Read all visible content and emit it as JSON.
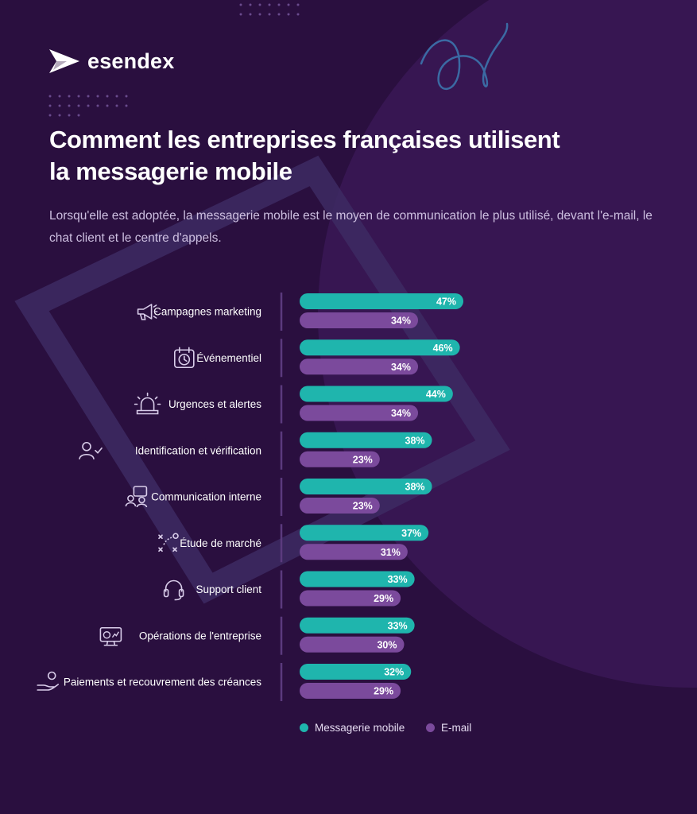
{
  "brand": {
    "name": "esendex"
  },
  "header": {
    "title_line1": "Comment les entreprises françaises utilisent",
    "title_line2": "la messagerie mobile",
    "subtitle": "Lorsqu'elle est adoptée, la messagerie mobile est le moyen de communication le plus utilisé, devant l'e-mail, le chat client et le centre d'appels."
  },
  "colors": {
    "background": "#2a0f3f",
    "mobile": "#1fb5ad",
    "email": "#7b4a9c",
    "accent_line": "#3b6aa3"
  },
  "chart_data": {
    "type": "bar",
    "orientation": "horizontal",
    "categories": [
      "Campagnes marketing",
      "Événementiel",
      "Urgences et alertes",
      "Identification et vérification",
      "Communication interne",
      "Étude de marché",
      "Support client",
      "Opérations de l'entreprise",
      "Paiements et recouvrement des créances"
    ],
    "category_icons": [
      "megaphone-icon",
      "calendar-clock-icon",
      "siren-icon",
      "user-check-icon",
      "chat-users-icon",
      "strategy-icon",
      "headset-icon",
      "dashboard-monitor-icon",
      "hand-coin-icon"
    ],
    "series": [
      {
        "name": "Messagerie mobile",
        "color": "#1fb5ad",
        "values": [
          47,
          46,
          44,
          38,
          38,
          37,
          33,
          33,
          32
        ],
        "labels": [
          "47%",
          "46%",
          "44%",
          "38%",
          "38%",
          "37%",
          "33%",
          "33%",
          "32%"
        ]
      },
      {
        "name": "E-mail",
        "color": "#7b4a9c",
        "values": [
          34,
          34,
          34,
          23,
          23,
          31,
          29,
          30,
          29
        ],
        "labels": [
          "34%",
          "34%",
          "34%",
          "23%",
          "23%",
          "31%",
          "29%",
          "30%",
          "29%"
        ]
      }
    ],
    "unit": "%",
    "xlim": [
      0,
      47
    ],
    "grid": false,
    "legend_position": "bottom-center"
  }
}
